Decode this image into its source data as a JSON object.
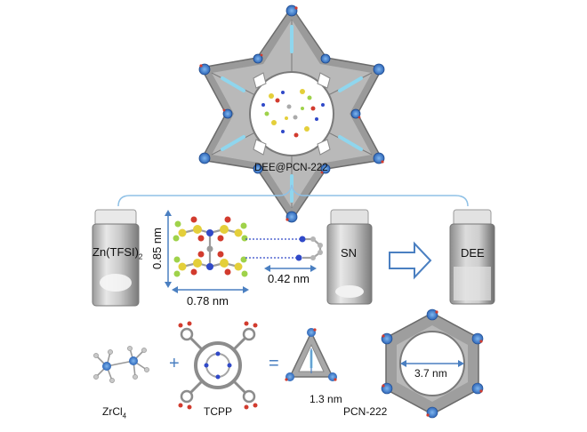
{
  "labels": {
    "top_framework": "DEE@PCN-222",
    "zn_salt_main": "Zn(TFSI)",
    "zn_salt_sub": "2",
    "dim_vertical": "0.85 nm",
    "dim_horizontal": "0.78 nm",
    "dim_sn": "0.42 nm",
    "sn": "SN",
    "dee": "DEE",
    "zrcl_main": "ZrCl",
    "zrcl_sub": "4",
    "tcpp": "TCPP",
    "plus": "+",
    "equals": "=",
    "pore_small": "1.3 nm",
    "pore_large": "3.7 nm",
    "pcn": "PCN-222"
  },
  "colors": {
    "accent_blue": "#4a7fc1",
    "bracket_blue": "#8fc1e6",
    "framework_gray": "#8c8c8c",
    "zr_node_blue": "#3f7fd0",
    "oxygen_red": "#d23b2e",
    "sulfur_yellow": "#e4cf3a",
    "fluorine_green": "#9fd24a",
    "nitrogen_blue": "#3049c8"
  },
  "icons": {
    "arrow": "hollow-right-arrow-icon"
  }
}
